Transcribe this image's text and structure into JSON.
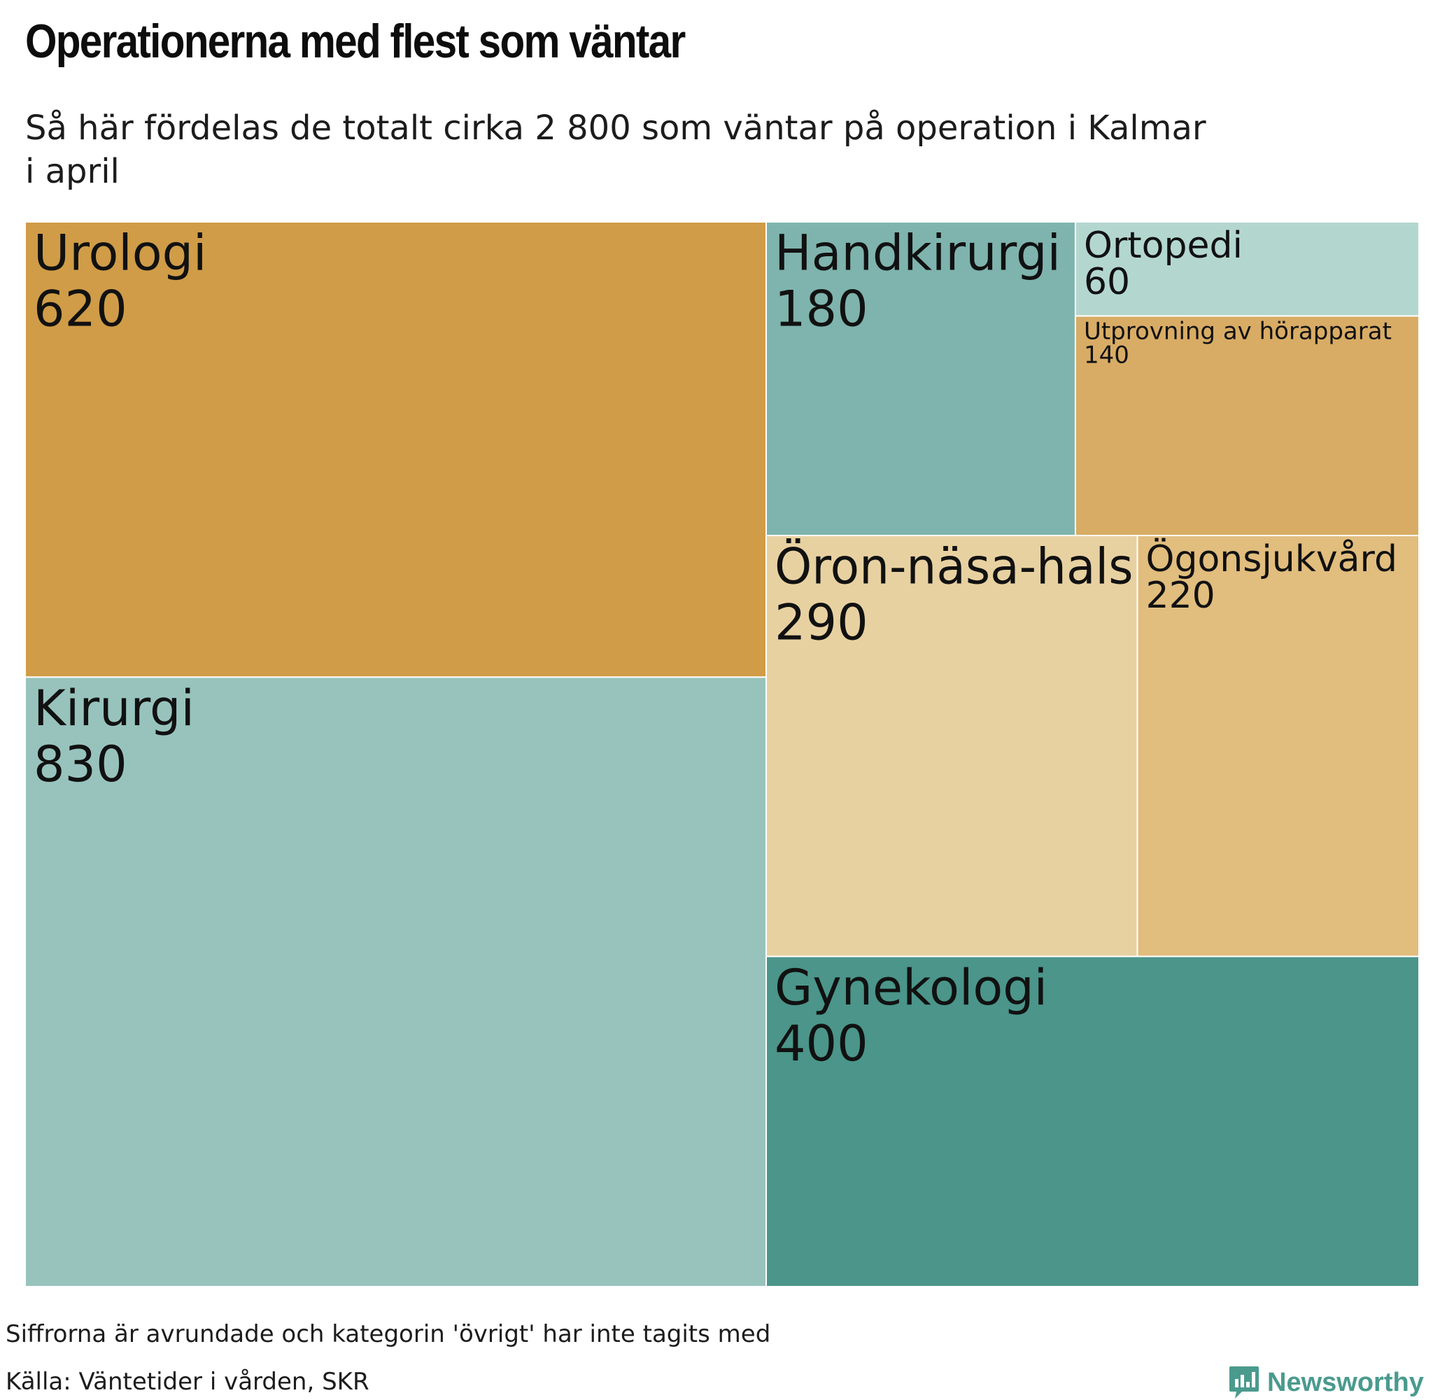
{
  "title": "Operationerna med flest som väntar",
  "subtitle": {
    "line1": "Så här fördelas de totalt cirka 2 800 som väntar på operation i Kalmar",
    "line2": "i april"
  },
  "chart_data": {
    "type": "treemap",
    "nodes": [
      {
        "name": "Urologi",
        "value": 620,
        "color": "#d09c47"
      },
      {
        "name": "Kirurgi",
        "value": 830,
        "color": "#98c3bd"
      },
      {
        "name": "Handkirurgi",
        "value": 180,
        "color": "#7eb4ad"
      },
      {
        "name": "Ortopedi",
        "value": 60,
        "color": "#b3d7cf"
      },
      {
        "name": "Utprovning av hörapparat",
        "value": 140,
        "color": "#d8ac65"
      },
      {
        "name": "Öron-näsa-hals",
        "value": 290,
        "color": "#e8d1a1"
      },
      {
        "name": "Ögonsjukvård",
        "value": 220,
        "color": "#e1bd7e"
      },
      {
        "name": "Gynekologi",
        "value": 400,
        "color": "#4b958a"
      }
    ]
  },
  "footer": {
    "note": "Siffrorna är avrundade och kategorin 'övrigt' har inte tagits med",
    "source": "Källa: Väntetider i vården, SKR",
    "brand": "Newsworthy",
    "brand_color": "#4a9a8e",
    "brand_icon": "bar-chart-speech-bubble-icon"
  }
}
